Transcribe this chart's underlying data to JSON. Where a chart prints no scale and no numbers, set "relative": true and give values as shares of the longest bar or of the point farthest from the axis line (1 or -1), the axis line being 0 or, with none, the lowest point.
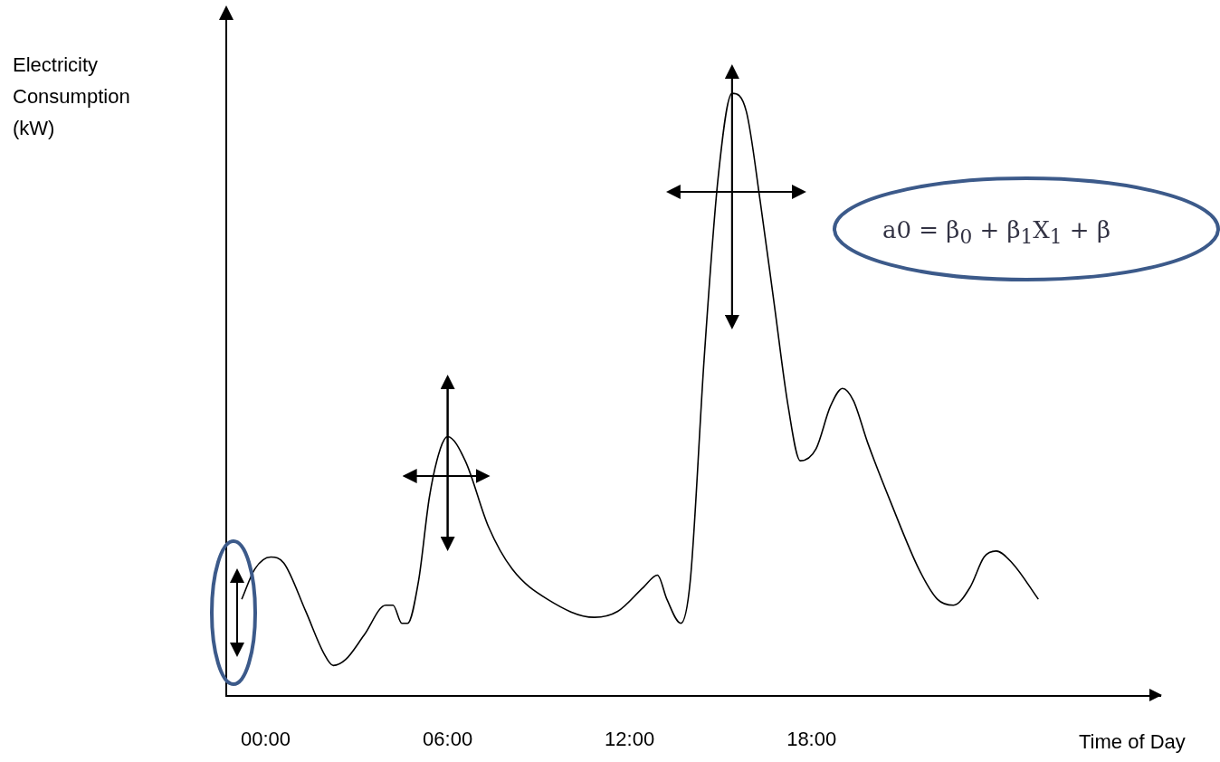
{
  "chart_data": {
    "type": "line",
    "xlabel": "Time of Day",
    "ylabel": "Electricity Consumption (kW)",
    "annotations": [
      "a0 = β$_{0}$ + β$_{1}$X$_{1}$ + β"
    ],
    "x": [
      -0.79,
      -0.36,
      0.17,
      0.6,
      1.32,
      1.92,
      2.23,
      2.64,
      3.24,
      3.96,
      4.2,
      4.49,
      4.68,
      5.04,
      5.4,
      5.76,
      6.0,
      6.58,
      7.35,
      8.13,
      9.29,
      10.84,
      11.61,
      12.46,
      12.92,
      13.23,
      13.69,
      14.0,
      14.46,
      14.92,
      15.38,
      15.85,
      16.31,
      16.77,
      17.23,
      17.63,
      18.15,
      18.62,
      19.02,
      19.38,
      19.85,
      20.62,
      21.54,
      22.15,
      22.68,
      23.23,
      23.69,
      24.09,
      24.62,
      25.48
    ],
    "values": [
      0.16,
      0.21,
      0.23,
      0.22,
      0.14,
      0.07,
      0.05,
      0.06,
      0.1,
      0.15,
      0.15,
      0.12,
      0.12,
      0.19,
      0.33,
      0.41,
      0.43,
      0.39,
      0.28,
      0.21,
      0.16,
      0.13,
      0.14,
      0.18,
      0.2,
      0.16,
      0.12,
      0.19,
      0.56,
      0.86,
      1.0,
      0.97,
      0.82,
      0.65,
      0.48,
      0.39,
      0.41,
      0.48,
      0.51,
      0.49,
      0.42,
      0.32,
      0.21,
      0.16,
      0.15,
      0.18,
      0.23,
      0.24,
      0.22,
      0.16
    ],
    "color": "#000000",
    "relative": true,
    "xlim": [
      -1.3,
      29.5
    ],
    "xticks": [
      {
        "value": 0,
        "label": "00:00"
      },
      {
        "value": 6,
        "label": "06:00"
      },
      {
        "value": 12,
        "label": "12:00"
      },
      {
        "value": 18,
        "label": "18:00"
      }
    ]
  }
}
